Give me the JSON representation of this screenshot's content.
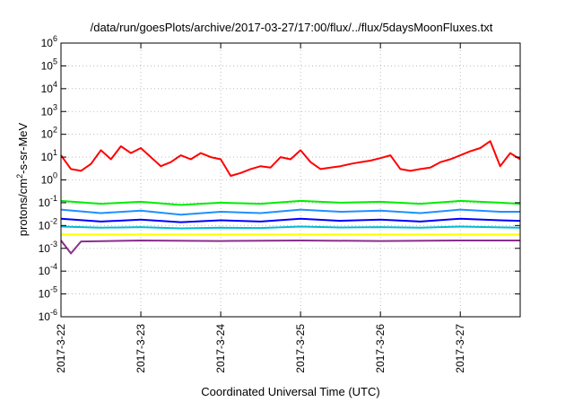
{
  "chart_data": {
    "type": "line",
    "title": "/data/run/goesPlots/archive/2017-03-27/17:00/flux/../flux/5daysMoonFluxes.txt",
    "xlabel": "Coordinated Universal Time (UTC)",
    "ylabel": "protons/cm2-s-sr-MeV",
    "ylabel_parts": {
      "pre": "protons/cm",
      "sup": "2",
      "post": "-s-sr-MeV"
    },
    "yscale": "log",
    "ylim": [
      1e-06,
      1000000.0
    ],
    "ytick_mantissa": "10",
    "ytick_exponents": [
      "-6",
      "-5",
      "-4",
      "-3",
      "-2",
      "-1",
      "0",
      "1",
      "2",
      "3",
      "4",
      "5",
      "6"
    ],
    "xlim": [
      "2017-03-22",
      "2017-03-27T18:00"
    ],
    "xticks": [
      "2017-3-22",
      "2017-3-23",
      "2017-3-24",
      "2017-3-25",
      "2017-3-26",
      "2017-3-27"
    ],
    "grid": true,
    "series": [
      {
        "color": "#ff0000",
        "x": [
          "2017-03-22T00:00",
          "2017-03-22T03:00",
          "2017-03-22T06:00",
          "2017-03-22T09:00",
          "2017-03-22T12:00",
          "2017-03-22T15:00",
          "2017-03-22T18:00",
          "2017-03-22T21:00",
          "2017-03-23T00:00",
          "2017-03-23T03:00",
          "2017-03-23T06:00",
          "2017-03-23T09:00",
          "2017-03-23T12:00",
          "2017-03-23T15:00",
          "2017-03-23T18:00",
          "2017-03-23T21:00",
          "2017-03-24T00:00",
          "2017-03-24T03:00",
          "2017-03-24T06:00",
          "2017-03-24T09:00",
          "2017-03-24T12:00",
          "2017-03-24T15:00",
          "2017-03-24T18:00",
          "2017-03-24T21:00",
          "2017-03-25T00:00",
          "2017-03-25T03:00",
          "2017-03-25T06:00",
          "2017-03-25T09:00",
          "2017-03-25T12:00",
          "2017-03-25T15:00",
          "2017-03-25T18:00",
          "2017-03-25T21:00",
          "2017-03-26T00:00",
          "2017-03-26T03:00",
          "2017-03-26T06:00",
          "2017-03-26T09:00",
          "2017-03-26T12:00",
          "2017-03-26T15:00",
          "2017-03-26T18:00",
          "2017-03-26T21:00",
          "2017-03-27T00:00",
          "2017-03-27T03:00",
          "2017-03-27T06:00",
          "2017-03-27T09:00",
          "2017-03-27T12:00",
          "2017-03-27T15:00",
          "2017-03-27T18:00"
        ],
        "values": [
          12,
          3,
          2.5,
          5,
          20,
          8,
          30,
          15,
          25,
          10,
          4,
          6,
          12,
          8,
          15,
          10,
          8,
          1.5,
          2,
          3,
          4,
          3.5,
          10,
          8,
          20,
          6,
          3,
          3.5,
          4,
          5,
          6,
          7,
          9,
          12,
          3,
          2.5,
          3,
          3.5,
          6,
          8,
          12,
          18,
          25,
          50,
          4,
          15,
          8
        ]
      },
      {
        "color": "#00ee00",
        "x": [
          "2017-03-22",
          "2017-03-22T12:00",
          "2017-03-23",
          "2017-03-23T12:00",
          "2017-03-24",
          "2017-03-24T12:00",
          "2017-03-25",
          "2017-03-25T12:00",
          "2017-03-26",
          "2017-03-26T12:00",
          "2017-03-27",
          "2017-03-27T12:00",
          "2017-03-27T18:00"
        ],
        "values": [
          0.12,
          0.09,
          0.11,
          0.08,
          0.1,
          0.09,
          0.12,
          0.1,
          0.11,
          0.09,
          0.12,
          0.1,
          0.09
        ]
      },
      {
        "color": "#1e90ff",
        "x": [
          "2017-03-22",
          "2017-03-22T12:00",
          "2017-03-23",
          "2017-03-23T12:00",
          "2017-03-24",
          "2017-03-24T12:00",
          "2017-03-25",
          "2017-03-25T12:00",
          "2017-03-26",
          "2017-03-26T12:00",
          "2017-03-27",
          "2017-03-27T12:00",
          "2017-03-27T18:00"
        ],
        "values": [
          0.05,
          0.035,
          0.045,
          0.03,
          0.04,
          0.035,
          0.05,
          0.04,
          0.045,
          0.035,
          0.05,
          0.04,
          0.04
        ]
      },
      {
        "color": "#0000ff",
        "x": [
          "2017-03-22",
          "2017-03-22T12:00",
          "2017-03-23",
          "2017-03-23T12:00",
          "2017-03-24",
          "2017-03-24T12:00",
          "2017-03-25",
          "2017-03-25T12:00",
          "2017-03-26",
          "2017-03-26T12:00",
          "2017-03-27",
          "2017-03-27T12:00",
          "2017-03-27T18:00"
        ],
        "values": [
          0.02,
          0.015,
          0.018,
          0.014,
          0.017,
          0.015,
          0.02,
          0.016,
          0.018,
          0.015,
          0.02,
          0.017,
          0.016
        ]
      },
      {
        "color": "#00bcd4",
        "x": [
          "2017-03-22",
          "2017-03-22T12:00",
          "2017-03-23",
          "2017-03-23T12:00",
          "2017-03-24",
          "2017-03-24T12:00",
          "2017-03-25",
          "2017-03-25T12:00",
          "2017-03-26",
          "2017-03-26T12:00",
          "2017-03-27",
          "2017-03-27T12:00",
          "2017-03-27T18:00"
        ],
        "values": [
          0.009,
          0.008,
          0.0085,
          0.0075,
          0.008,
          0.0078,
          0.009,
          0.0082,
          0.0085,
          0.008,
          0.009,
          0.0083,
          0.008
        ]
      },
      {
        "color": "#ffff00",
        "x": [
          "2017-03-22",
          "2017-03-27T18:00"
        ],
        "values": [
          0.004,
          0.004
        ]
      },
      {
        "color": "#8b2f8b",
        "x": [
          "2017-03-22",
          "2017-03-22T03:00",
          "2017-03-22T06:00",
          "2017-03-23",
          "2017-03-24",
          "2017-03-25",
          "2017-03-26",
          "2017-03-27",
          "2017-03-27T18:00"
        ],
        "values": [
          0.0022,
          0.0006,
          0.002,
          0.0022,
          0.0021,
          0.0022,
          0.0021,
          0.0022,
          0.0022
        ]
      }
    ]
  }
}
